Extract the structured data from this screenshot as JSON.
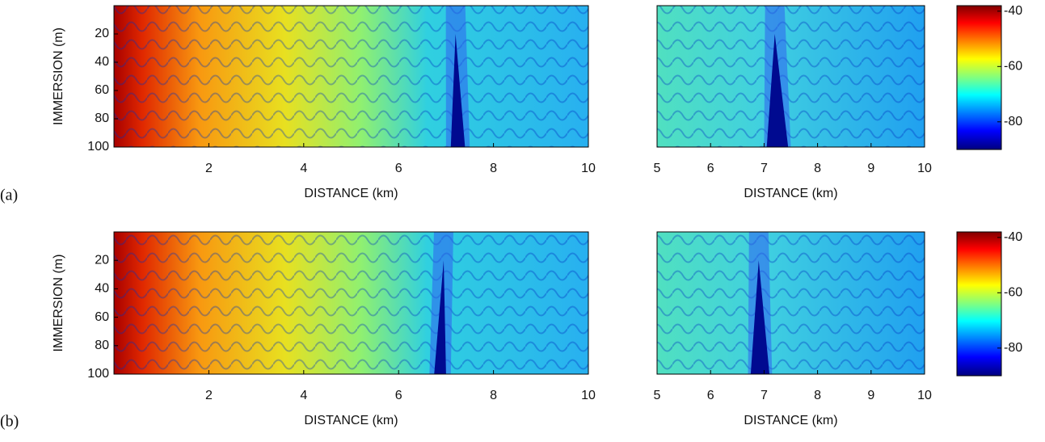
{
  "panel_labels": [
    "(a)",
    "(b)"
  ],
  "chart_data": [
    {
      "type": "heatmap",
      "xlabel": "DISTANCE (km)",
      "ylabel": "IMMERSION (m)",
      "xlim": [
        0,
        10
      ],
      "ylim": [
        0,
        100
      ],
      "y_inverted": true,
      "xticks": [
        2,
        4,
        6,
        8,
        10
      ],
      "yticks": [
        20,
        40,
        60,
        80,
        100
      ]
    },
    {
      "type": "heatmap",
      "xlabel": "DISTANCE (km)",
      "xlim": [
        5,
        10
      ],
      "ylim": [
        0,
        100
      ],
      "y_inverted": true,
      "xticks": [
        5,
        6,
        7,
        8,
        9,
        10
      ]
    },
    {
      "type": "colorbar",
      "clim": [
        -90,
        -38
      ],
      "ticks": [
        -40,
        -60,
        -80
      ]
    },
    {
      "type": "heatmap",
      "xlabel": "DISTANCE (km)",
      "ylabel": "IMMERSION (m)",
      "xlim": [
        0,
        10
      ],
      "ylim": [
        0,
        100
      ],
      "y_inverted": true,
      "xticks": [
        2,
        4,
        6,
        8,
        10
      ],
      "yticks": [
        20,
        40,
        60,
        80,
        100
      ]
    },
    {
      "type": "heatmap",
      "xlabel": "DISTANCE (km)",
      "xlim": [
        5,
        10
      ],
      "ylim": [
        0,
        100
      ],
      "y_inverted": true,
      "xticks": [
        5,
        6,
        7,
        8,
        9,
        10
      ]
    },
    {
      "type": "colorbar",
      "clim": [
        -90,
        -38
      ],
      "ticks": [
        -40,
        -60,
        -80
      ]
    }
  ]
}
